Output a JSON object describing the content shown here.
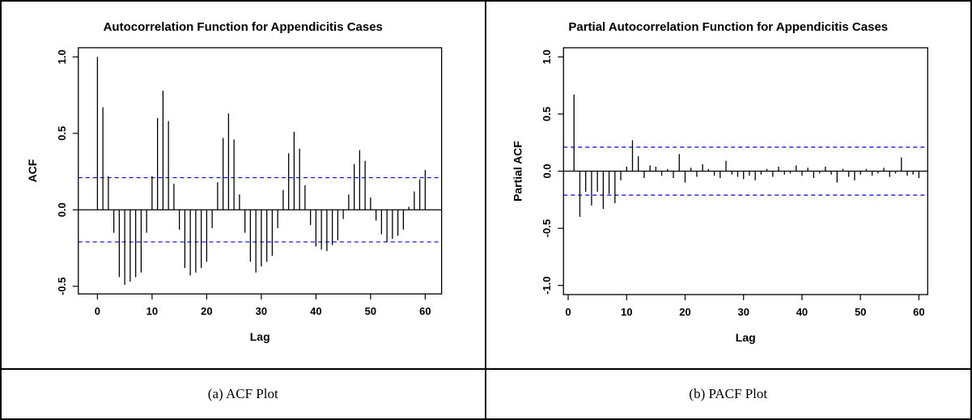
{
  "figure": {
    "panels": [
      {
        "title": "Autocorrelation Function for Appendicitis Cases",
        "caption": "(a) ACF Plot"
      },
      {
        "title": "Partial Autocorrelation Function for Appendicitis Cases",
        "caption": "(b) PACF Plot"
      }
    ]
  },
  "chart_data": [
    {
      "type": "bar",
      "subtype": "stem",
      "title": "Autocorrelation Function for Appendicitis Cases",
      "xlabel": "Lag",
      "ylabel": "ACF",
      "xlim": [
        -3.5,
        63
      ],
      "ylim": [
        -0.55,
        1.06
      ],
      "xtick_labels": [
        "0",
        "10",
        "20",
        "30",
        "40",
        "50",
        "60"
      ],
      "xticks": [
        0,
        10,
        20,
        30,
        40,
        50,
        60
      ],
      "ytick_labels": [
        "-0.5",
        "0.0",
        "0.5",
        "1.0"
      ],
      "yticks": [
        -0.5,
        0.0,
        0.5,
        1.0
      ],
      "confidence_bounds": [
        -0.21,
        0.21
      ],
      "confidence_line_color": "#0000FF",
      "confidence_line_style": "dashed",
      "stem_color": "#000000",
      "grid": false,
      "lags": [
        0,
        1,
        2,
        3,
        4,
        5,
        6,
        7,
        8,
        9,
        10,
        11,
        12,
        13,
        14,
        15,
        16,
        17,
        18,
        19,
        20,
        21,
        22,
        23,
        24,
        25,
        26,
        27,
        28,
        29,
        30,
        31,
        32,
        33,
        34,
        35,
        36,
        37,
        38,
        39,
        40,
        41,
        42,
        43,
        44,
        45,
        46,
        47,
        48,
        49,
        50,
        51,
        52,
        53,
        54,
        55,
        56,
        57,
        58,
        59,
        60
      ],
      "values": [
        1.0,
        0.67,
        0.22,
        -0.15,
        -0.44,
        -0.49,
        -0.47,
        -0.44,
        -0.41,
        -0.15,
        0.22,
        0.6,
        0.78,
        0.58,
        0.17,
        -0.13,
        -0.38,
        -0.43,
        -0.41,
        -0.38,
        -0.34,
        -0.12,
        0.18,
        0.47,
        0.63,
        0.46,
        0.1,
        -0.15,
        -0.34,
        -0.41,
        -0.37,
        -0.34,
        -0.3,
        -0.12,
        0.13,
        0.37,
        0.51,
        0.4,
        0.16,
        -0.1,
        -0.24,
        -0.26,
        -0.27,
        -0.23,
        -0.2,
        -0.06,
        0.1,
        0.3,
        0.39,
        0.32,
        0.08,
        -0.07,
        -0.16,
        -0.21,
        -0.19,
        -0.17,
        -0.13,
        0.02,
        0.12,
        0.2,
        0.26
      ]
    },
    {
      "type": "bar",
      "subtype": "stem",
      "title": "Partial Autocorrelation Function for Appendicitis Cases",
      "xlabel": "Lag",
      "ylabel": "Partial ACF",
      "xlim": [
        -0.8,
        61.5
      ],
      "ylim": [
        -1.08,
        1.08
      ],
      "xtick_labels": [
        "0",
        "10",
        "20",
        "30",
        "40",
        "50",
        "60"
      ],
      "xticks": [
        0,
        10,
        20,
        30,
        40,
        50,
        60
      ],
      "ytick_labels": [
        "-1.0",
        "-0.5",
        "0.0",
        "0.5",
        "1.0"
      ],
      "yticks": [
        -1.0,
        -0.5,
        0.0,
        0.5,
        1.0
      ],
      "confidence_bounds": [
        -0.21,
        0.21
      ],
      "confidence_line_color": "#0000FF",
      "confidence_line_style": "dashed",
      "stem_color": "#000000",
      "grid": false,
      "lags": [
        1,
        2,
        3,
        4,
        5,
        6,
        7,
        8,
        9,
        10,
        11,
        12,
        13,
        14,
        15,
        16,
        17,
        18,
        19,
        20,
        21,
        22,
        23,
        24,
        25,
        26,
        27,
        28,
        29,
        30,
        31,
        32,
        33,
        34,
        35,
        36,
        37,
        38,
        39,
        40,
        41,
        42,
        43,
        44,
        45,
        46,
        47,
        48,
        49,
        50,
        51,
        52,
        53,
        54,
        55,
        56,
        57,
        58,
        59,
        60
      ],
      "values": [
        0.67,
        -0.4,
        -0.18,
        -0.3,
        -0.18,
        -0.33,
        -0.2,
        -0.28,
        -0.08,
        0.04,
        0.27,
        0.13,
        -0.06,
        0.05,
        0.04,
        -0.04,
        0.02,
        -0.06,
        0.15,
        -0.1,
        0.03,
        -0.05,
        0.06,
        0.02,
        -0.04,
        -0.06,
        0.09,
        -0.03,
        -0.05,
        -0.07,
        -0.04,
        -0.08,
        -0.03,
        0.02,
        -0.05,
        0.04,
        -0.03,
        -0.02,
        0.05,
        -0.04,
        0.03,
        -0.06,
        -0.02,
        0.04,
        -0.03,
        -0.1,
        0.02,
        -0.05,
        -0.08,
        -0.03,
        0.02,
        -0.04,
        -0.02,
        0.03,
        -0.05,
        -0.02,
        0.12,
        -0.04,
        -0.03,
        -0.06
      ]
    }
  ]
}
